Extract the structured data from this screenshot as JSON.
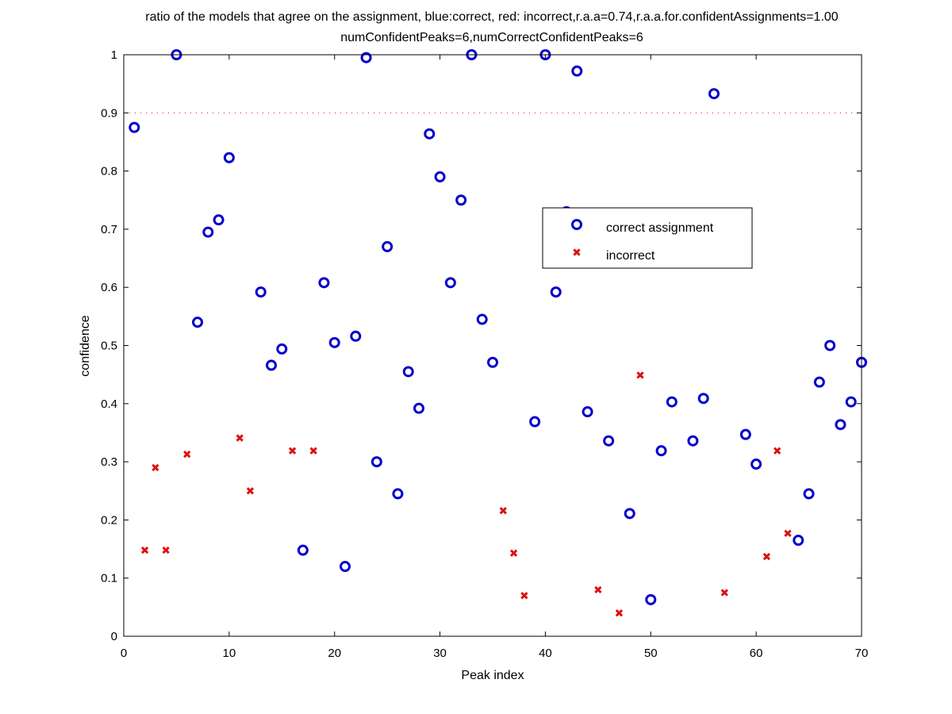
{
  "chart_data": {
    "type": "scatter",
    "title_line1": "ratio of the models that agree on the assignment, blue:correct, red: incorrect,r.a.a=0.74,r.a.a.for.confidentAssignments=1.00",
    "title_line2": "numConfidentPeaks=6,numCorrectConfidentPeaks=6",
    "xlabel": "Peak index",
    "ylabel": "confidence",
    "xlim": [
      0,
      70
    ],
    "ylim": [
      0,
      1
    ],
    "xticks": [
      0,
      10,
      20,
      30,
      40,
      50,
      60,
      70
    ],
    "yticks": [
      0,
      0.1,
      0.2,
      0.3,
      0.4,
      0.5,
      0.6,
      0.7,
      0.8,
      0.9,
      1
    ],
    "xtick_labels": [
      "0",
      "10",
      "20",
      "30",
      "40",
      "50",
      "60",
      "70"
    ],
    "ytick_labels": [
      "0",
      "0.1",
      "0.2",
      "0.3",
      "0.4",
      "0.5",
      "0.6",
      "0.7",
      "0.8",
      "0.9",
      "1"
    ],
    "threshold_line": 0.9,
    "legend_position": "upper-right-center",
    "series": [
      {
        "name": "correct assignment",
        "marker": "circle",
        "color": "#0000cc",
        "points": [
          [
            1,
            0.875
          ],
          [
            5,
            1.0
          ],
          [
            7,
            0.54
          ],
          [
            8,
            0.695
          ],
          [
            9,
            0.716
          ],
          [
            10,
            0.823
          ],
          [
            13,
            0.592
          ],
          [
            14,
            0.466
          ],
          [
            15,
            0.494
          ],
          [
            17,
            0.148
          ],
          [
            19,
            0.608
          ],
          [
            20,
            0.505
          ],
          [
            21,
            0.12
          ],
          [
            22,
            0.516
          ],
          [
            23,
            0.995
          ],
          [
            24,
            0.3
          ],
          [
            25,
            0.67
          ],
          [
            26,
            0.245
          ],
          [
            27,
            0.455
          ],
          [
            28,
            0.392
          ],
          [
            29,
            0.864
          ],
          [
            30,
            0.79
          ],
          [
            31,
            0.608
          ],
          [
            32,
            0.75
          ],
          [
            33,
            1.0
          ],
          [
            34,
            0.545
          ],
          [
            35,
            0.471
          ],
          [
            39,
            0.369
          ],
          [
            40,
            1.0
          ],
          [
            41,
            0.592
          ],
          [
            42,
            0.73
          ],
          [
            43,
            0.972
          ],
          [
            44,
            0.386
          ],
          [
            46,
            0.336
          ],
          [
            48,
            0.211
          ],
          [
            50,
            0.063
          ],
          [
            51,
            0.319
          ],
          [
            52,
            0.403
          ],
          [
            54,
            0.336
          ],
          [
            55,
            0.409
          ],
          [
            56,
            0.933
          ],
          [
            59,
            0.347
          ],
          [
            60,
            0.296
          ],
          [
            64,
            0.165
          ],
          [
            65,
            0.245
          ],
          [
            66,
            0.437
          ],
          [
            67,
            0.5
          ],
          [
            68,
            0.364
          ],
          [
            69,
            0.403
          ],
          [
            70,
            0.471
          ]
        ]
      },
      {
        "name": "incorrect",
        "marker": "x",
        "color": "#dd1111",
        "points": [
          [
            2,
            0.148
          ],
          [
            3,
            0.29
          ],
          [
            4,
            0.148
          ],
          [
            6,
            0.313
          ],
          [
            11,
            0.341
          ],
          [
            12,
            0.25
          ],
          [
            16,
            0.319
          ],
          [
            18,
            0.319
          ],
          [
            36,
            0.216
          ],
          [
            37,
            0.143
          ],
          [
            38,
            0.07
          ],
          [
            45,
            0.08
          ],
          [
            47,
            0.04
          ],
          [
            49,
            0.449
          ],
          [
            57,
            0.075
          ],
          [
            61,
            0.137
          ],
          [
            62,
            0.319
          ],
          [
            63,
            0.177
          ]
        ]
      }
    ]
  }
}
